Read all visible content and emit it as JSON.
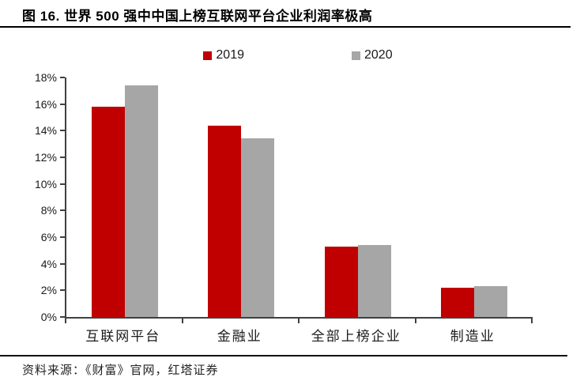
{
  "title": "图 16. 世界 500 强中中国上榜互联网平台企业利润率极高",
  "source": "资料来源：《财富》官网，红塔证券",
  "colors": {
    "series_2019": "#c00000",
    "series_2020": "#a6a6a6",
    "axis": "#404040",
    "title_text": "#000000",
    "rule": "#000000"
  },
  "legend": [
    {
      "label": "2019",
      "color": "#c00000"
    },
    {
      "label": "2020",
      "color": "#a6a6a6"
    }
  ],
  "chart_data": {
    "type": "bar",
    "title": "世界 500 强中中国上榜互联网平台企业利润率极高",
    "categories": [
      "互联网平台",
      "金融业",
      "全部上榜企业",
      "制造业"
    ],
    "series": [
      {
        "name": "2019",
        "color": "#c00000",
        "values": [
          15.8,
          14.4,
          5.3,
          2.2
        ]
      },
      {
        "name": "2020",
        "color": "#a6a6a6",
        "values": [
          17.4,
          13.4,
          5.4,
          2.3
        ]
      }
    ],
    "xlabel": "",
    "ylabel": "",
    "ylim": [
      0,
      18
    ],
    "ytick_step": 2,
    "ytick_labels": [
      "0%",
      "2%",
      "4%",
      "6%",
      "8%",
      "10%",
      "12%",
      "14%",
      "16%",
      "18%"
    ],
    "grid": false,
    "legend_position": "top-center",
    "unit": "percent"
  }
}
